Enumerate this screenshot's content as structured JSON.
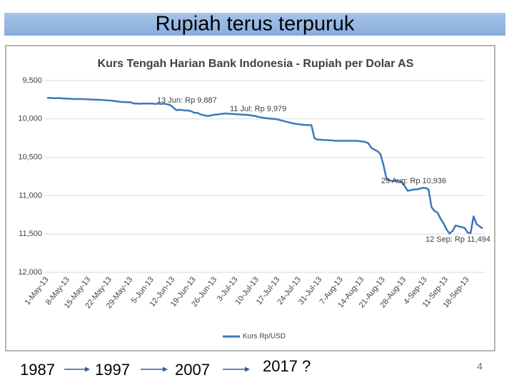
{
  "slide_title": "Rupiah terus terpuruk",
  "chart_data": {
    "type": "line",
    "title": "Kurs Tengah Harian Bank Indonesia - Rupiah per Dolar AS",
    "categories": [
      "1-May-13",
      null,
      null,
      null,
      null,
      null,
      null,
      "8-May-13",
      null,
      null,
      null,
      null,
      null,
      null,
      "15-May-13",
      null,
      null,
      null,
      null,
      null,
      null,
      "22-May-13",
      null,
      null,
      null,
      null,
      null,
      null,
      "29-May-13",
      null,
      null,
      null,
      null,
      null,
      null,
      "5-Jun-13",
      null,
      null,
      null,
      null,
      null,
      null,
      "12-Jun-13",
      null,
      null,
      null,
      null,
      null,
      null,
      "19-Jun-13",
      null,
      null,
      null,
      null,
      null,
      null,
      "26-Jun-13",
      null,
      null,
      null,
      null,
      null,
      null,
      "3-Jul-13",
      null,
      null,
      null,
      null,
      null,
      null,
      "10-Jul-13",
      null,
      null,
      null,
      null,
      null,
      null,
      "17-Jul-13",
      null,
      null,
      null,
      null,
      null,
      null,
      "24-Jul-13",
      null,
      null,
      null,
      null,
      null,
      null,
      "31-Jul-13",
      null,
      null,
      null,
      null,
      null,
      null,
      "7-Aug-13",
      null,
      null,
      null,
      null,
      null,
      null,
      "14-Aug-13",
      null,
      null,
      null,
      null,
      null,
      null,
      "21-Aug-13",
      null,
      null,
      null,
      null,
      null,
      null,
      "28-Aug-13",
      null,
      null,
      null,
      null,
      null,
      null,
      "4-Sep-13",
      null,
      null,
      null,
      null,
      null,
      null,
      "11-Sep-13",
      null,
      null,
      null,
      null,
      null,
      null,
      "18-Sep-13",
      null,
      null,
      null,
      null,
      null
    ],
    "series": [
      {
        "name": "Kurs Rp/USD",
        "color": "#3d78b8",
        "values": [
          9725,
          9725,
          9730,
          9730,
          9728,
          9732,
          9735,
          9735,
          9738,
          9740,
          9740,
          9742,
          9740,
          9745,
          9745,
          9748,
          9750,
          9750,
          9752,
          9755,
          9758,
          9760,
          9765,
          9770,
          9775,
          9780,
          9780,
          9782,
          9785,
          9800,
          9800,
          9802,
          9800,
          9800,
          9800,
          9800,
          9805,
          9800,
          9805,
          9800,
          9810,
          9820,
          9850,
          9887,
          9880,
          9885,
          9890,
          9890,
          9900,
          9920,
          9920,
          9940,
          9950,
          9960,
          9960,
          9950,
          9945,
          9940,
          9935,
          9930,
          9930,
          9935,
          9935,
          9940,
          9940,
          9945,
          9945,
          9950,
          9955,
          9960,
          9970,
          9979,
          9985,
          9990,
          9995,
          10000,
          10000,
          10010,
          10020,
          10030,
          10040,
          10050,
          10060,
          10065,
          10070,
          10075,
          10080,
          10080,
          10080,
          10250,
          10270,
          10270,
          10275,
          10275,
          10280,
          10280,
          10285,
          10285,
          10285,
          10285,
          10285,
          10285,
          10285,
          10285,
          10290,
          10295,
          10300,
          10320,
          10380,
          10400,
          10420,
          10460,
          10600,
          10780,
          10800,
          10810,
          10800,
          10810,
          10820,
          10870,
          10936,
          10930,
          10920,
          10920,
          10910,
          10900,
          10900,
          10920,
          11150,
          11200,
          11220,
          11300,
          11360,
          11440,
          11494,
          11460,
          11390,
          11400,
          11410,
          11420,
          11480,
          11490,
          11270,
          11370,
          11400,
          11430
        ]
      }
    ],
    "ylim": [
      9500,
      12000
    ],
    "inverted": true,
    "yticks": [
      {
        "value": 9500,
        "label": "9,500"
      },
      {
        "value": 10000,
        "label": "10,000"
      },
      {
        "value": 10500,
        "label": "10,500"
      },
      {
        "value": 11000,
        "label": "11,000"
      },
      {
        "value": 11500,
        "label": "11,500"
      },
      {
        "value": 12000,
        "label": "12,000"
      }
    ],
    "grid": true,
    "legend": "bottom",
    "annotations": [
      "13 Jun: Rp 9,887",
      "11 Jul: Rp 9,979",
      "29 Aug: Rp 10,936",
      "12 Sep: Rp 11,494"
    ]
  },
  "footer": {
    "years": [
      "1987",
      "1997",
      "2007",
      "2017 ?"
    ],
    "page_number": "4"
  }
}
